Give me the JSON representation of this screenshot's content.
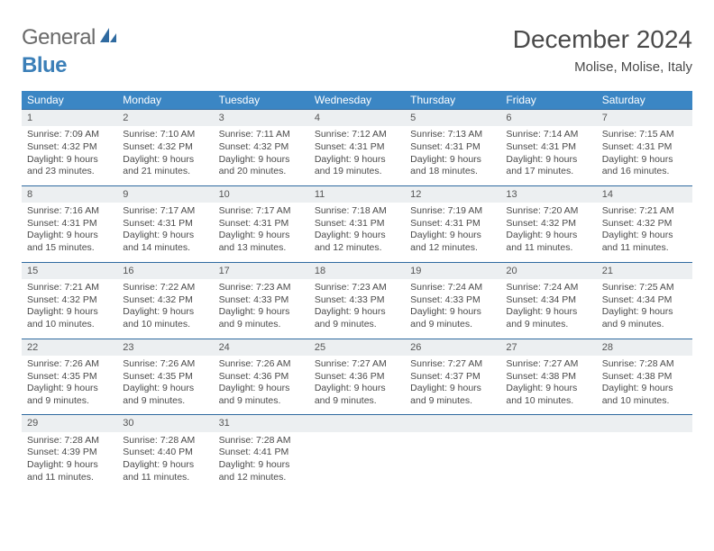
{
  "logo": {
    "part1": "General",
    "part2": "Blue"
  },
  "title": "December 2024",
  "location": "Molise, Molise, Italy",
  "colors": {
    "header_bg": "#3b86c4",
    "header_fg": "#ffffff",
    "daynum_bg": "#eceff1",
    "border": "#2f6aa0",
    "text": "#4a4a4a",
    "page_bg": "#ffffff"
  },
  "day_names": [
    "Sunday",
    "Monday",
    "Tuesday",
    "Wednesday",
    "Thursday",
    "Friday",
    "Saturday"
  ],
  "weeks": [
    [
      {
        "n": "1",
        "sr": "Sunrise: 7:09 AM",
        "ss": "Sunset: 4:32 PM",
        "d1": "Daylight: 9 hours",
        "d2": "and 23 minutes."
      },
      {
        "n": "2",
        "sr": "Sunrise: 7:10 AM",
        "ss": "Sunset: 4:32 PM",
        "d1": "Daylight: 9 hours",
        "d2": "and 21 minutes."
      },
      {
        "n": "3",
        "sr": "Sunrise: 7:11 AM",
        "ss": "Sunset: 4:32 PM",
        "d1": "Daylight: 9 hours",
        "d2": "and 20 minutes."
      },
      {
        "n": "4",
        "sr": "Sunrise: 7:12 AM",
        "ss": "Sunset: 4:31 PM",
        "d1": "Daylight: 9 hours",
        "d2": "and 19 minutes."
      },
      {
        "n": "5",
        "sr": "Sunrise: 7:13 AM",
        "ss": "Sunset: 4:31 PM",
        "d1": "Daylight: 9 hours",
        "d2": "and 18 minutes."
      },
      {
        "n": "6",
        "sr": "Sunrise: 7:14 AM",
        "ss": "Sunset: 4:31 PM",
        "d1": "Daylight: 9 hours",
        "d2": "and 17 minutes."
      },
      {
        "n": "7",
        "sr": "Sunrise: 7:15 AM",
        "ss": "Sunset: 4:31 PM",
        "d1": "Daylight: 9 hours",
        "d2": "and 16 minutes."
      }
    ],
    [
      {
        "n": "8",
        "sr": "Sunrise: 7:16 AM",
        "ss": "Sunset: 4:31 PM",
        "d1": "Daylight: 9 hours",
        "d2": "and 15 minutes."
      },
      {
        "n": "9",
        "sr": "Sunrise: 7:17 AM",
        "ss": "Sunset: 4:31 PM",
        "d1": "Daylight: 9 hours",
        "d2": "and 14 minutes."
      },
      {
        "n": "10",
        "sr": "Sunrise: 7:17 AM",
        "ss": "Sunset: 4:31 PM",
        "d1": "Daylight: 9 hours",
        "d2": "and 13 minutes."
      },
      {
        "n": "11",
        "sr": "Sunrise: 7:18 AM",
        "ss": "Sunset: 4:31 PM",
        "d1": "Daylight: 9 hours",
        "d2": "and 12 minutes."
      },
      {
        "n": "12",
        "sr": "Sunrise: 7:19 AM",
        "ss": "Sunset: 4:31 PM",
        "d1": "Daylight: 9 hours",
        "d2": "and 12 minutes."
      },
      {
        "n": "13",
        "sr": "Sunrise: 7:20 AM",
        "ss": "Sunset: 4:32 PM",
        "d1": "Daylight: 9 hours",
        "d2": "and 11 minutes."
      },
      {
        "n": "14",
        "sr": "Sunrise: 7:21 AM",
        "ss": "Sunset: 4:32 PM",
        "d1": "Daylight: 9 hours",
        "d2": "and 11 minutes."
      }
    ],
    [
      {
        "n": "15",
        "sr": "Sunrise: 7:21 AM",
        "ss": "Sunset: 4:32 PM",
        "d1": "Daylight: 9 hours",
        "d2": "and 10 minutes."
      },
      {
        "n": "16",
        "sr": "Sunrise: 7:22 AM",
        "ss": "Sunset: 4:32 PM",
        "d1": "Daylight: 9 hours",
        "d2": "and 10 minutes."
      },
      {
        "n": "17",
        "sr": "Sunrise: 7:23 AM",
        "ss": "Sunset: 4:33 PM",
        "d1": "Daylight: 9 hours",
        "d2": "and 9 minutes."
      },
      {
        "n": "18",
        "sr": "Sunrise: 7:23 AM",
        "ss": "Sunset: 4:33 PM",
        "d1": "Daylight: 9 hours",
        "d2": "and 9 minutes."
      },
      {
        "n": "19",
        "sr": "Sunrise: 7:24 AM",
        "ss": "Sunset: 4:33 PM",
        "d1": "Daylight: 9 hours",
        "d2": "and 9 minutes."
      },
      {
        "n": "20",
        "sr": "Sunrise: 7:24 AM",
        "ss": "Sunset: 4:34 PM",
        "d1": "Daylight: 9 hours",
        "d2": "and 9 minutes."
      },
      {
        "n": "21",
        "sr": "Sunrise: 7:25 AM",
        "ss": "Sunset: 4:34 PM",
        "d1": "Daylight: 9 hours",
        "d2": "and 9 minutes."
      }
    ],
    [
      {
        "n": "22",
        "sr": "Sunrise: 7:26 AM",
        "ss": "Sunset: 4:35 PM",
        "d1": "Daylight: 9 hours",
        "d2": "and 9 minutes."
      },
      {
        "n": "23",
        "sr": "Sunrise: 7:26 AM",
        "ss": "Sunset: 4:35 PM",
        "d1": "Daylight: 9 hours",
        "d2": "and 9 minutes."
      },
      {
        "n": "24",
        "sr": "Sunrise: 7:26 AM",
        "ss": "Sunset: 4:36 PM",
        "d1": "Daylight: 9 hours",
        "d2": "and 9 minutes."
      },
      {
        "n": "25",
        "sr": "Sunrise: 7:27 AM",
        "ss": "Sunset: 4:36 PM",
        "d1": "Daylight: 9 hours",
        "d2": "and 9 minutes."
      },
      {
        "n": "26",
        "sr": "Sunrise: 7:27 AM",
        "ss": "Sunset: 4:37 PM",
        "d1": "Daylight: 9 hours",
        "d2": "and 9 minutes."
      },
      {
        "n": "27",
        "sr": "Sunrise: 7:27 AM",
        "ss": "Sunset: 4:38 PM",
        "d1": "Daylight: 9 hours",
        "d2": "and 10 minutes."
      },
      {
        "n": "28",
        "sr": "Sunrise: 7:28 AM",
        "ss": "Sunset: 4:38 PM",
        "d1": "Daylight: 9 hours",
        "d2": "and 10 minutes."
      }
    ],
    [
      {
        "n": "29",
        "sr": "Sunrise: 7:28 AM",
        "ss": "Sunset: 4:39 PM",
        "d1": "Daylight: 9 hours",
        "d2": "and 11 minutes."
      },
      {
        "n": "30",
        "sr": "Sunrise: 7:28 AM",
        "ss": "Sunset: 4:40 PM",
        "d1": "Daylight: 9 hours",
        "d2": "and 11 minutes."
      },
      {
        "n": "31",
        "sr": "Sunrise: 7:28 AM",
        "ss": "Sunset: 4:41 PM",
        "d1": "Daylight: 9 hours",
        "d2": "and 12 minutes."
      },
      null,
      null,
      null,
      null
    ]
  ]
}
